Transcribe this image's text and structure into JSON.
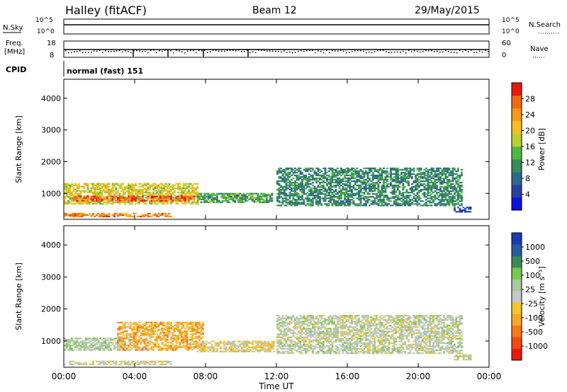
{
  "header": {
    "station": "Halley (fitACF)",
    "beam": "Beam 12",
    "date": "29/May/2015"
  },
  "strips": {
    "nsky_label": "N.Sky",
    "nsearch_label": "N.Search",
    "noise_left_ticks": [
      "10^5",
      "10^0"
    ],
    "noise_right_ticks": [
      "10^5",
      "10^0"
    ],
    "freq_label_line1": "Freq.",
    "freq_label_line2": "[MHz]",
    "freq_ticks": [
      "18",
      "8"
    ],
    "nave_label": "Nave",
    "nave_ticks": [
      "60",
      "0"
    ],
    "cpid_label": "CPID",
    "cpid_text": "normal (fast) 151"
  },
  "colors": {
    "power_scale": [
      "#1010e0",
      "#2a3fa0",
      "#2e6a8a",
      "#3a8a5a",
      "#52b848",
      "#b8d030",
      "#f4c020",
      "#f49a18",
      "#f06a14",
      "#e81a10"
    ],
    "velocity_scale": [
      "#e81a10",
      "#f04a12",
      "#f47a18",
      "#f5a828",
      "#f5c830",
      "#c8c8c8",
      "#a8c8a0",
      "#78c850",
      "#3a8a5a",
      "#2a5aa0",
      "#1a3ab0"
    ]
  },
  "chart_data": [
    {
      "type": "heatmap",
      "name": "power",
      "x_axis": {
        "ticks": [
          "00:00",
          "04:00",
          "08:00",
          "12:00",
          "16:00",
          "20:00",
          "00:00"
        ],
        "range_hours": [
          0,
          24
        ],
        "label": "Time UT"
      },
      "y_axis": {
        "label": "Slant Range [km]",
        "ticks": [
          1000,
          2000,
          3000,
          4000
        ],
        "range_km": [
          180,
          4600
        ]
      },
      "colorbar": {
        "label": "Power [dB]",
        "ticks": [
          "28",
          "24",
          "20",
          "16",
          "12",
          "8",
          "4"
        ],
        "range": [
          0,
          30
        ]
      },
      "echo_regions": [
        {
          "t_start": 0.0,
          "t_end": 7.5,
          "r_low": 650,
          "r_high": 1300,
          "mean": 18
        },
        {
          "t_start": 0.5,
          "t_end": 7.3,
          "r_low": 750,
          "r_high": 920,
          "mean": 26
        },
        {
          "t_start": 7.5,
          "t_end": 11.7,
          "r_low": 700,
          "r_high": 1000,
          "mean": 12
        },
        {
          "t_start": 0.0,
          "t_end": 6.0,
          "r_low": 250,
          "r_high": 350,
          "mean": 24
        },
        {
          "t_start": 12.0,
          "t_end": 22.5,
          "r_low": 600,
          "r_high": 1800,
          "mean": 10
        },
        {
          "t_start": 22.0,
          "t_end": 23.0,
          "r_low": 400,
          "r_high": 550,
          "mean": 6
        }
      ]
    },
    {
      "type": "heatmap",
      "name": "velocity",
      "x_axis": {
        "ticks": [
          "00:00",
          "04:00",
          "08:00",
          "12:00",
          "16:00",
          "20:00",
          "00:00"
        ],
        "range_hours": [
          0,
          24
        ],
        "label": "Time UT"
      },
      "y_axis": {
        "label": "Slant Range [km]",
        "ticks": [
          1000,
          2000,
          3000,
          4000
        ],
        "range_km": [
          180,
          4600
        ]
      },
      "colorbar": {
        "label": "Velocity [m s⁻¹]",
        "ticks": [
          "1000",
          "500",
          "100",
          "25",
          "-25",
          "-100",
          "-500",
          "-1000"
        ],
        "range": [
          -1000,
          1000
        ]
      },
      "echo_regions": [
        {
          "t_start": 0.0,
          "t_end": 3.5,
          "r_low": 700,
          "r_high": 1100,
          "mean": 150
        },
        {
          "t_start": 3.0,
          "t_end": 7.8,
          "r_low": 700,
          "r_high": 1600,
          "mean": -300
        },
        {
          "t_start": 7.5,
          "t_end": 11.8,
          "r_low": 650,
          "r_high": 1000,
          "mean": -80
        },
        {
          "t_start": 0.0,
          "t_end": 6.0,
          "r_low": 250,
          "r_high": 350,
          "mean": 0
        },
        {
          "t_start": 12.0,
          "t_end": 22.5,
          "r_low": 600,
          "r_high": 1800,
          "mean": 80
        },
        {
          "t_start": 22.0,
          "t_end": 23.0,
          "r_low": 400,
          "r_high": 550,
          "mean": 60
        }
      ]
    }
  ]
}
